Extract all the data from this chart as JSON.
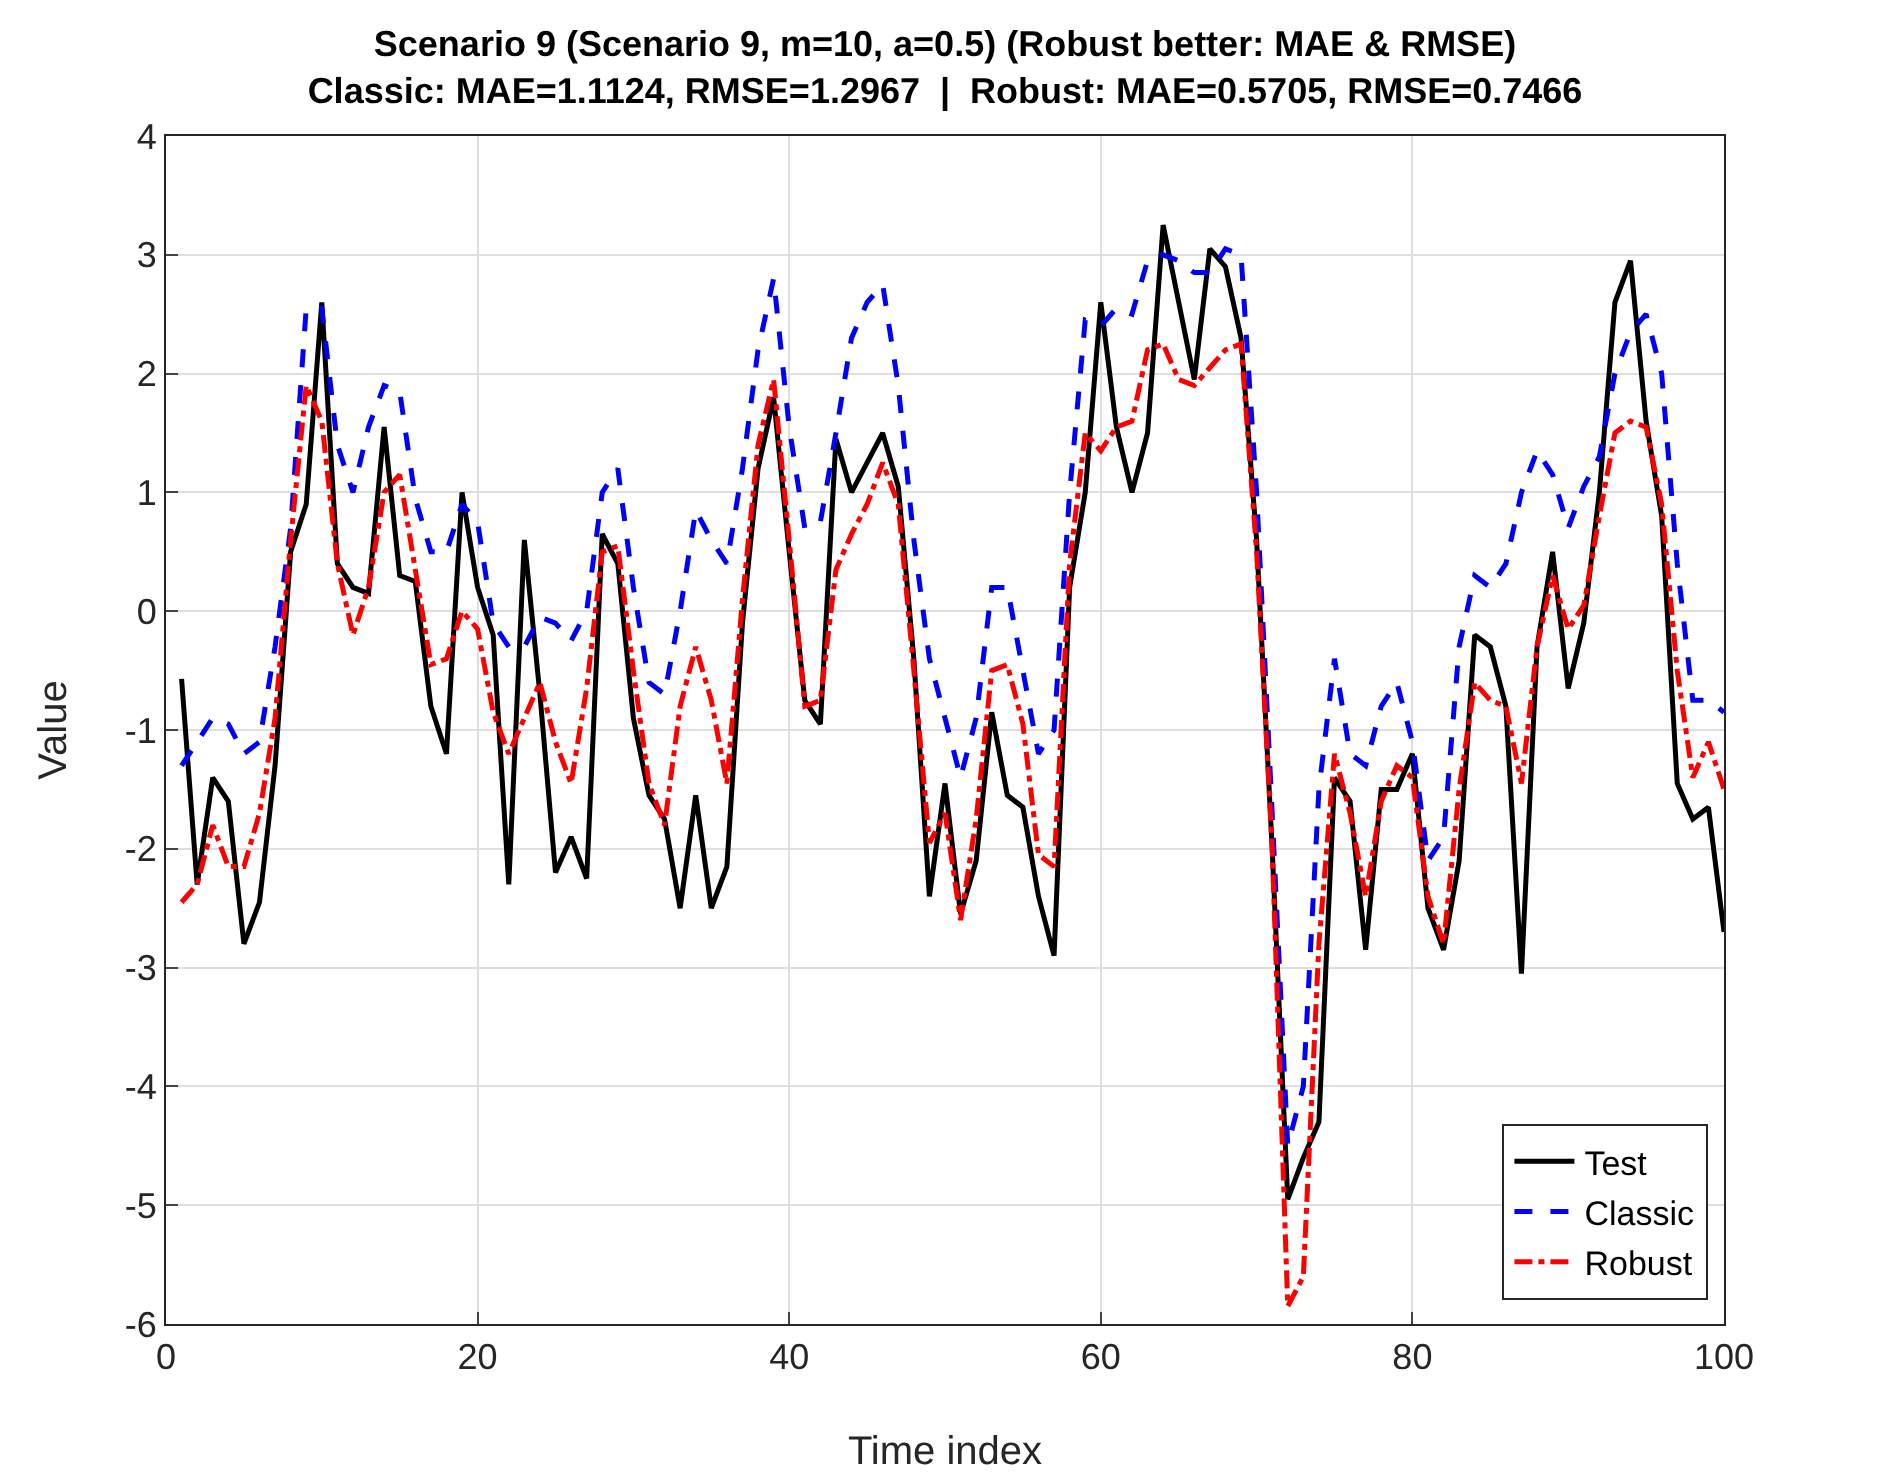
{
  "chart_data": {
    "type": "line",
    "title": "Scenario 9 (Scenario 9, m=10, a=0.5) (Robust better: MAE & RMSE)",
    "subtitle": "Classic: MAE=1.1124, RMSE=1.2967  |  Robust: MAE=0.5705, RMSE=0.7466",
    "xlabel": "Time index",
    "ylabel": "Value",
    "x": [
      1,
      2,
      3,
      4,
      5,
      6,
      7,
      8,
      9,
      10,
      11,
      12,
      13,
      14,
      15,
      16,
      17,
      18,
      19,
      20,
      21,
      22,
      23,
      24,
      25,
      26,
      27,
      28,
      29,
      30,
      31,
      32,
      33,
      34,
      35,
      36,
      37,
      38,
      39,
      40,
      41,
      42,
      43,
      44,
      45,
      46,
      47,
      48,
      49,
      50,
      51,
      52,
      53,
      54,
      55,
      56,
      57,
      58,
      59,
      60,
      61,
      62,
      63,
      64,
      65,
      66,
      67,
      68,
      69,
      70,
      71,
      72,
      73,
      74,
      75,
      76,
      77,
      78,
      79,
      80,
      81,
      82,
      83,
      84,
      85,
      86,
      87,
      88,
      89,
      90,
      91,
      92,
      93,
      94,
      95,
      96,
      97,
      98,
      99,
      100
    ],
    "series": [
      {
        "name": "Test",
        "color": "#000000",
        "line_style": "solid",
        "values": [
          -0.57,
          -2.3,
          -1.4,
          -1.6,
          -2.8,
          -2.45,
          -1.3,
          0.5,
          0.9,
          2.6,
          0.4,
          0.2,
          0.15,
          1.55,
          0.3,
          0.25,
          -0.8,
          -1.2,
          1.0,
          0.2,
          -0.2,
          -2.3,
          0.6,
          -0.7,
          -2.2,
          -1.9,
          -2.25,
          0.65,
          0.4,
          -0.9,
          -1.55,
          -1.75,
          -2.5,
          -1.55,
          -2.5,
          -2.15,
          -0.1,
          1.2,
          1.8,
          0.5,
          -0.75,
          -0.95,
          1.45,
          1.0,
          1.25,
          1.5,
          1.05,
          -0.4,
          -2.4,
          -1.45,
          -2.55,
          -2.1,
          -0.85,
          -1.55,
          -1.65,
          -2.4,
          -2.9,
          0.2,
          1.0,
          2.6,
          1.55,
          1.0,
          1.5,
          3.25,
          2.6,
          1.95,
          3.05,
          2.9,
          2.3,
          0.6,
          -2.0,
          -4.95,
          -4.6,
          -4.3,
          -1.4,
          -1.6,
          -2.85,
          -1.5,
          -1.5,
          -1.2,
          -2.5,
          -2.85,
          -2.1,
          -0.2,
          -0.3,
          -0.8,
          -3.05,
          -0.3,
          0.5,
          -0.65,
          -0.1,
          1.0,
          2.6,
          2.95,
          1.6,
          0.8,
          -1.45,
          -1.75,
          -1.65,
          -2.7
        ]
      },
      {
        "name": "Classic",
        "color": "#0000ff",
        "line_style": "dashed",
        "values": [
          -1.3,
          -1.1,
          -0.9,
          -0.95,
          -1.2,
          -1.1,
          -0.3,
          0.7,
          2.55,
          2.55,
          1.4,
          1.0,
          1.55,
          1.9,
          1.85,
          0.95,
          0.5,
          0.5,
          0.9,
          0.75,
          -0.1,
          -0.3,
          -0.3,
          -0.05,
          -0.1,
          -0.25,
          0.0,
          1.0,
          1.2,
          0.2,
          -0.6,
          -0.7,
          0.0,
          0.85,
          0.6,
          0.4,
          1.2,
          2.2,
          2.8,
          1.55,
          0.7,
          0.75,
          1.5,
          2.3,
          2.6,
          2.75,
          1.9,
          0.6,
          -0.4,
          -0.9,
          -1.4,
          -0.9,
          0.2,
          0.2,
          -0.5,
          -1.2,
          -1.0,
          1.0,
          2.45,
          2.4,
          2.55,
          2.5,
          2.95,
          3.0,
          2.95,
          2.85,
          2.85,
          3.05,
          3.0,
          1.0,
          -1.7,
          -4.5,
          -4.0,
          -1.5,
          -0.4,
          -1.2,
          -1.3,
          -0.8,
          -0.6,
          -1.1,
          -2.1,
          -1.9,
          -0.3,
          0.3,
          0.2,
          0.4,
          1.0,
          1.35,
          1.15,
          0.7,
          1.05,
          1.3,
          2.0,
          2.35,
          2.5,
          2.0,
          0.4,
          -0.75,
          -0.75,
          -0.85
        ]
      },
      {
        "name": "Robust",
        "color": "#ff0000",
        "line_style": "dashdot",
        "values": [
          -2.45,
          -2.3,
          -1.8,
          -2.15,
          -2.15,
          -1.7,
          -0.9,
          0.6,
          1.9,
          1.6,
          0.4,
          -0.2,
          0.2,
          1.0,
          1.15,
          0.35,
          -0.45,
          -0.4,
          0.0,
          -0.15,
          -0.85,
          -1.2,
          -0.9,
          -0.6,
          -1.1,
          -1.45,
          -0.65,
          0.5,
          0.55,
          -0.5,
          -1.45,
          -1.8,
          -0.8,
          -0.3,
          -0.75,
          -1.45,
          0.1,
          1.4,
          1.95,
          0.6,
          -0.8,
          -0.75,
          0.35,
          0.65,
          0.9,
          1.25,
          0.9,
          -0.5,
          -1.95,
          -1.7,
          -2.6,
          -1.75,
          -0.5,
          -0.45,
          -0.95,
          -2.05,
          -2.15,
          0.4,
          1.5,
          1.35,
          1.55,
          1.6,
          2.2,
          2.25,
          1.95,
          1.9,
          2.05,
          2.2,
          2.25,
          0.5,
          -2.0,
          -5.85,
          -5.6,
          -2.8,
          -1.2,
          -1.7,
          -2.4,
          -1.6,
          -1.3,
          -1.4,
          -2.4,
          -2.8,
          -1.5,
          -0.6,
          -0.75,
          -0.8,
          -1.45,
          -0.3,
          0.3,
          -0.15,
          0.05,
          0.8,
          1.5,
          1.6,
          1.55,
          0.9,
          -0.5,
          -1.4,
          -1.1,
          -1.5
        ]
      }
    ],
    "xlim": [
      0,
      100
    ],
    "xticks": [
      0,
      20,
      40,
      60,
      80,
      100
    ],
    "ylim": [
      -6,
      4
    ],
    "yticks": [
      -6,
      -5,
      -4,
      -3,
      -2,
      -1,
      0,
      1,
      2,
      3,
      4
    ],
    "grid": true,
    "legend": "bottom right",
    "marker": "none"
  }
}
